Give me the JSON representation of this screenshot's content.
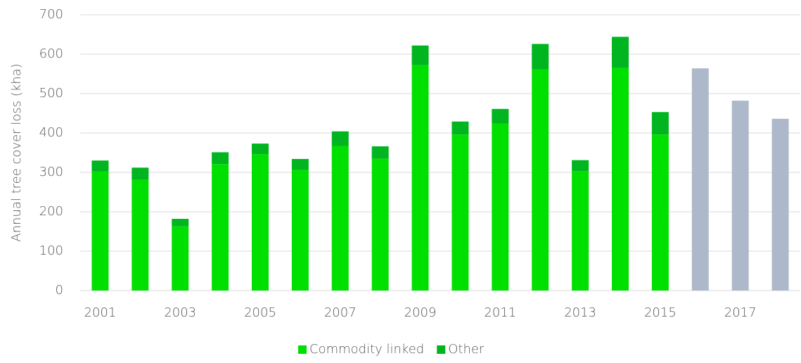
{
  "chart_data": {
    "type": "stacked_bar",
    "y_label": "Annual tree cover loss (kha)",
    "categories": [
      "2001",
      null,
      "2003",
      null,
      "2005",
      null,
      "2007",
      null,
      "2009",
      null,
      "2011",
      null,
      "2013",
      null,
      "2015",
      null,
      "2017",
      null
    ],
    "series": [
      {
        "name": "Commodity linked",
        "color": "#00e000",
        "values": [
          302,
          281,
          163,
          321,
          346,
          306,
          367,
          335,
          572,
          396,
          424,
          561,
          303,
          565,
          396,
          null,
          null,
          null
        ]
      },
      {
        "name": "Other",
        "color": "#00b520",
        "values": [
          28,
          31,
          19,
          30,
          27,
          28,
          37,
          31,
          50,
          33,
          37,
          65,
          28,
          79,
          57,
          null,
          null,
          null
        ]
      },
      {
        "color": "#adb9ca",
        "values": [
          null,
          null,
          null,
          null,
          null,
          null,
          null,
          null,
          null,
          null,
          null,
          null,
          null,
          null,
          null,
          564,
          482,
          436
        ]
      }
    ],
    "ylim": [
      0,
      700
    ],
    "yticks": [
      0,
      100,
      200,
      300,
      400,
      500,
      600,
      700
    ],
    "grid": true,
    "legend": "bottom"
  }
}
